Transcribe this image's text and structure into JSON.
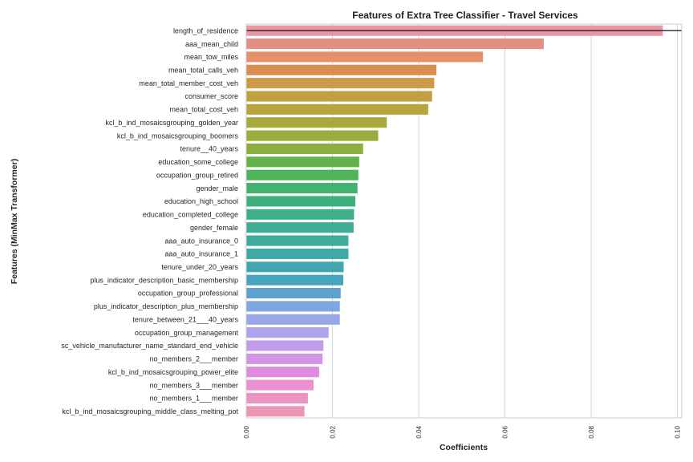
{
  "chart_data": {
    "type": "bar",
    "orientation": "horizontal",
    "title": "Features of Extra Tree Classifier - Travel Services",
    "xlabel": "Coefficients",
    "ylabel": "Features (MinMax Transformer)",
    "xlim": [
      0,
      0.101
    ],
    "xticks": [
      "0.00",
      "0.02",
      "0.04",
      "0.06",
      "0.08",
      "0.10"
    ],
    "grid": "vertical",
    "reference_line": "at length_of_residence bar",
    "categories": [
      "length_of_residence",
      "aaa_mean_child",
      "mean_tow_miles",
      "mean_total_calls_veh",
      "mean_total_member_cost_veh",
      "consumer_score",
      "mean_total_cost_veh",
      "kcl_b_ind_mosaicsgrouping_golden_year",
      "kcl_b_ind_mosaicsgrouping_boomers",
      "tenure__40_years",
      "education_some_college",
      "occupation_group_retired",
      "gender_male",
      "education_high_school",
      "education_completed_college",
      "gender_female",
      "aaa_auto_insurance_0",
      "aaa_auto_insurance_1",
      "tenure_under_20_years",
      "plus_indicator_description_basic_membership",
      "occupation_group_professional",
      "plus_indicator_description_plus_membership",
      "tenure_between_21___40_years",
      "occupation_group_management",
      "sc_vehicle_manufacturer_name_standard_end_vehicle",
      "no_members_2___member",
      "kcl_b_ind_mosaicsgrouping_power_elite",
      "no_members_3___member",
      "no_members_1___member",
      "kcl_b_ind_mosaicsgrouping_middle_class_melting_pot"
    ],
    "values": [
      0.0966,
      0.069,
      0.0549,
      0.0441,
      0.0436,
      0.0431,
      0.0422,
      0.0326,
      0.0306,
      0.0271,
      0.0262,
      0.026,
      0.0258,
      0.0253,
      0.025,
      0.0249,
      0.0237,
      0.0237,
      0.0226,
      0.0225,
      0.0219,
      0.0217,
      0.0217,
      0.0191,
      0.0179,
      0.0177,
      0.0169,
      0.0156,
      0.0143,
      0.0135
    ],
    "colors": [
      "#ea96a3",
      "#e58e84",
      "#e4906a",
      "#d98f4f",
      "#cd9b47",
      "#c29f41",
      "#b7a43f",
      "#a8a93c",
      "#9bab3c",
      "#8bae3e",
      "#63b24a",
      "#4fb357",
      "#43b26e",
      "#3fb07c",
      "#3faf89",
      "#3fad94",
      "#3fab9d",
      "#3fa9a6",
      "#42a6b0",
      "#48a3bd",
      "#5da2cf",
      "#7ea6e0",
      "#98a7e7",
      "#aea2ec",
      "#c29ceb",
      "#d194e7",
      "#e08be0",
      "#ea90d3",
      "#eb94c3",
      "#ea97b3"
    ]
  }
}
